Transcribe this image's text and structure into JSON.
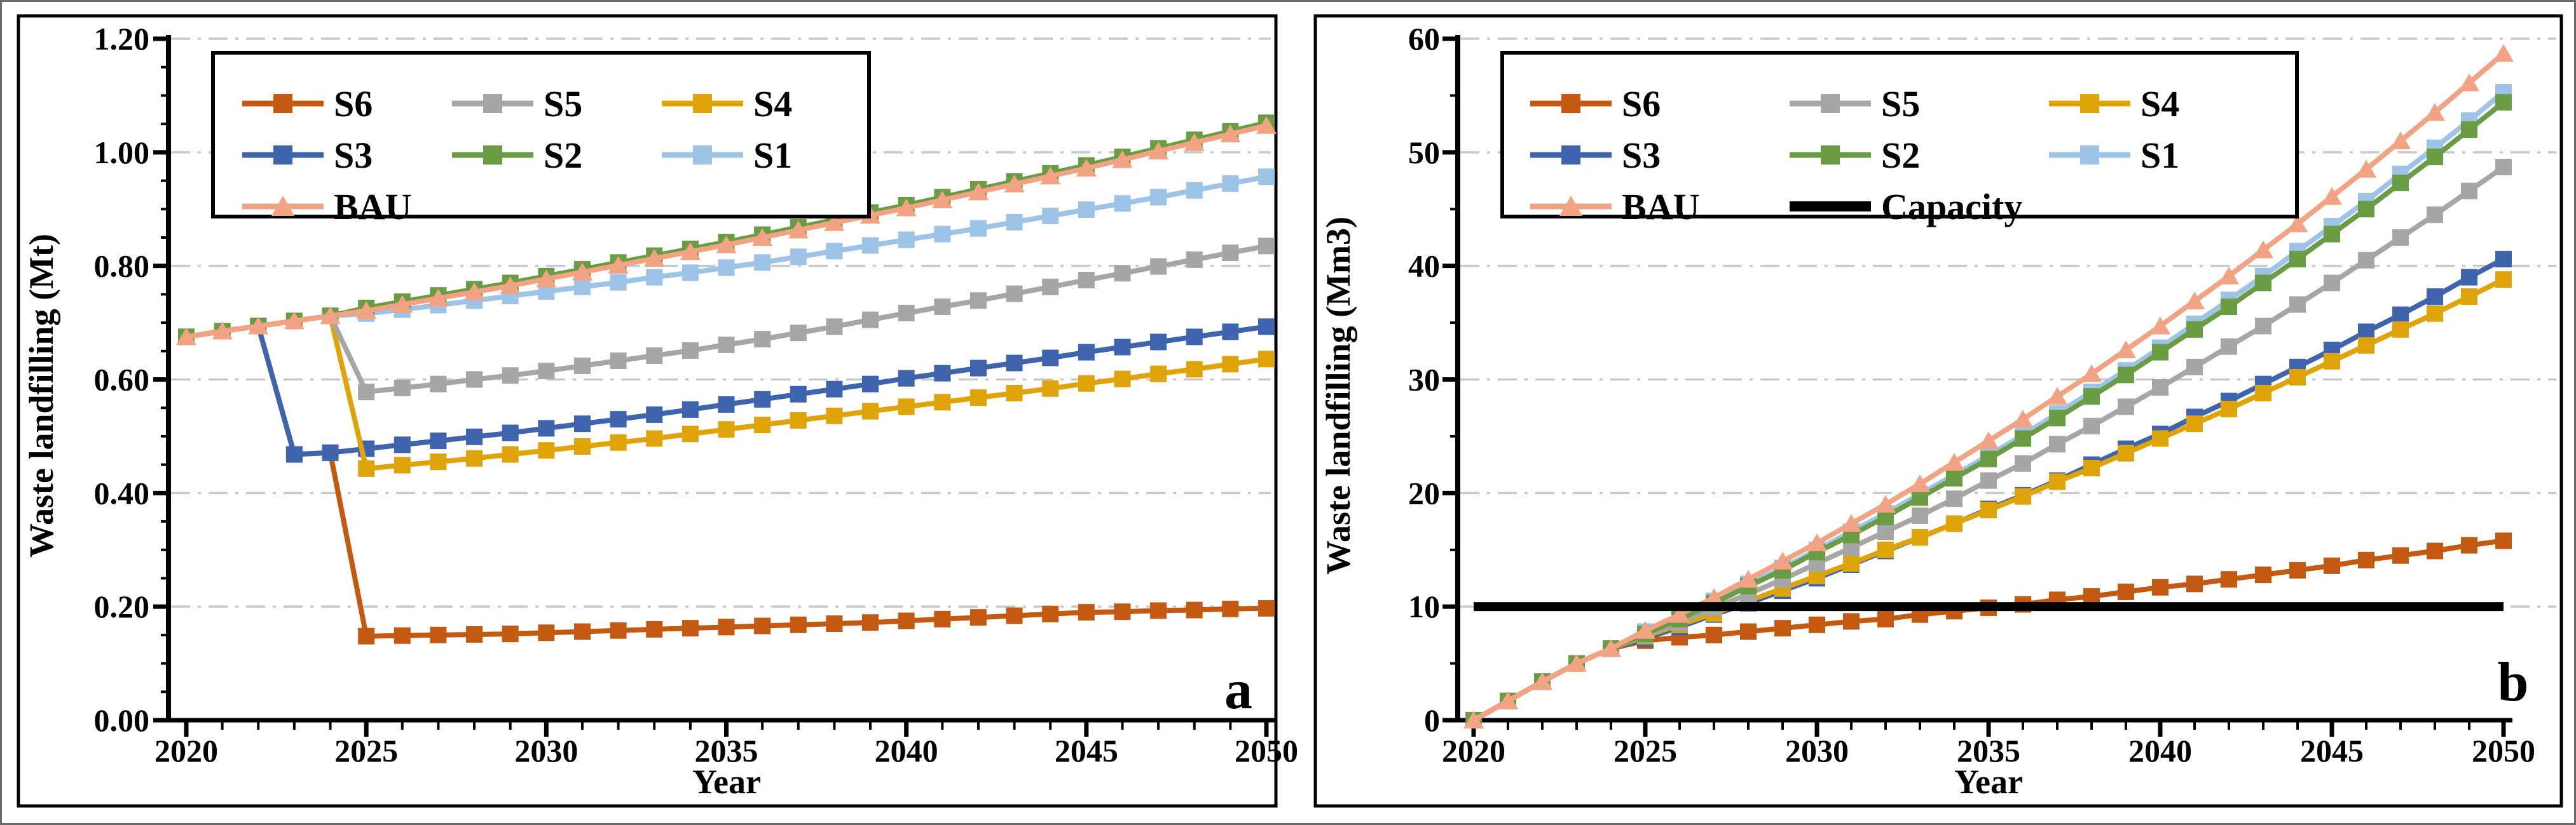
{
  "figure": {
    "background": "#ffffff",
    "outer_border_color": "#6b6b6b",
    "frame_color": "#000000",
    "gridline_color": "#c9c9c9",
    "text_color": "#000000"
  },
  "chart_data": [
    {
      "type": "line",
      "panel_label": "a",
      "xlabel": "Year",
      "ylabel": "Waste landfilling (Mt)",
      "x_start": 2020,
      "x_end": 2050,
      "xlim": [
        2020,
        2050
      ],
      "ylim": [
        0,
        1.2
      ],
      "x_major_step": 5,
      "x_minor_step": 1,
      "y_major_step": 0.2,
      "y_minor_step": 0.05,
      "y_tick_decimals": 2,
      "x_tick_labels": [
        "2020",
        "2025",
        "2030",
        "2035",
        "2040",
        "2045",
        "2050"
      ],
      "y_tick_labels": [
        "0.00",
        "0.20",
        "0.40",
        "0.60",
        "0.80",
        "1.00",
        "1.20"
      ],
      "grid": "horizontal dash-dot",
      "legend_position": "inside top-left",
      "legend_order": [
        "S6",
        "S5",
        "S4",
        "S3",
        "S2",
        "S1",
        "BAU"
      ],
      "draw_order": [
        "S6",
        "S3",
        "S4",
        "S5",
        "S1",
        "S2",
        "BAU"
      ],
      "series": [
        {
          "name": "S6",
          "color": "#C45911",
          "marker": "square",
          "values": [
            0.675,
            0.685,
            0.694,
            0.468,
            0.471,
            0.148,
            0.149,
            0.15,
            0.151,
            0.152,
            0.154,
            0.156,
            0.158,
            0.16,
            0.162,
            0.164,
            0.166,
            0.168,
            0.17,
            0.172,
            0.175,
            0.178,
            0.181,
            0.184,
            0.187,
            0.19,
            0.191,
            0.193,
            0.194,
            0.196,
            0.197
          ]
        },
        {
          "name": "S5",
          "color": "#A6A6A6",
          "marker": "square",
          "values": [
            0.675,
            0.685,
            0.694,
            0.703,
            0.712,
            0.578,
            0.585,
            0.592,
            0.6,
            0.607,
            0.615,
            0.624,
            0.633,
            0.642,
            0.651,
            0.661,
            0.671,
            0.682,
            0.693,
            0.705,
            0.717,
            0.728,
            0.739,
            0.751,
            0.763,
            0.775,
            0.787,
            0.799,
            0.811,
            0.823,
            0.835
          ]
        },
        {
          "name": "S4",
          "color": "#DFA40A",
          "marker": "square",
          "values": [
            0.675,
            0.685,
            0.694,
            0.703,
            0.712,
            0.443,
            0.449,
            0.455,
            0.461,
            0.468,
            0.475,
            0.482,
            0.489,
            0.496,
            0.504,
            0.512,
            0.52,
            0.528,
            0.536,
            0.544,
            0.552,
            0.56,
            0.568,
            0.576,
            0.584,
            0.593,
            0.601,
            0.61,
            0.618,
            0.627,
            0.636
          ]
        },
        {
          "name": "S3",
          "color": "#3E64AE",
          "marker": "square",
          "values": [
            0.675,
            0.685,
            0.694,
            0.468,
            0.471,
            0.478,
            0.485,
            0.492,
            0.499,
            0.506,
            0.514,
            0.522,
            0.53,
            0.538,
            0.547,
            0.556,
            0.565,
            0.574,
            0.583,
            0.592,
            0.602,
            0.611,
            0.62,
            0.629,
            0.638,
            0.648,
            0.657,
            0.666,
            0.675,
            0.684,
            0.693
          ]
        },
        {
          "name": "S2",
          "color": "#6A9C44",
          "marker": "square",
          "values": [
            0.675,
            0.685,
            0.694,
            0.703,
            0.712,
            0.726,
            0.737,
            0.748,
            0.759,
            0.77,
            0.782,
            0.794,
            0.806,
            0.818,
            0.83,
            0.842,
            0.855,
            0.868,
            0.881,
            0.894,
            0.907,
            0.921,
            0.935,
            0.949,
            0.963,
            0.977,
            0.992,
            1.007,
            1.022,
            1.037,
            1.052
          ]
        },
        {
          "name": "S1",
          "color": "#9DC3E6",
          "marker": "square",
          "values": [
            0.675,
            0.685,
            0.694,
            0.703,
            0.712,
            0.716,
            0.723,
            0.731,
            0.739,
            0.747,
            0.755,
            0.763,
            0.771,
            0.78,
            0.788,
            0.797,
            0.806,
            0.816,
            0.826,
            0.836,
            0.846,
            0.856,
            0.866,
            0.877,
            0.888,
            0.899,
            0.91,
            0.921,
            0.933,
            0.945,
            0.957
          ]
        },
        {
          "name": "BAU",
          "color": "#F1A383",
          "marker": "triangle",
          "values": [
            0.675,
            0.685,
            0.694,
            0.703,
            0.712,
            0.721,
            0.732,
            0.743,
            0.754,
            0.765,
            0.777,
            0.789,
            0.801,
            0.813,
            0.825,
            0.837,
            0.85,
            0.863,
            0.876,
            0.889,
            0.902,
            0.916,
            0.93,
            0.944,
            0.958,
            0.972,
            0.987,
            1.002,
            1.017,
            1.032,
            1.047
          ]
        }
      ]
    },
    {
      "type": "line",
      "panel_label": "b",
      "xlabel": "Year",
      "ylabel": "Waste landfilling (Mm3)",
      "x_start": 2020,
      "x_end": 2050,
      "xlim": [
        2020,
        2050
      ],
      "ylim": [
        0,
        60
      ],
      "x_major_step": 5,
      "x_minor_step": 1,
      "y_major_step": 10,
      "y_minor_step": 5,
      "y_tick_decimals": 0,
      "x_tick_labels": [
        "2020",
        "2025",
        "2030",
        "2035",
        "2040",
        "2045",
        "2050"
      ],
      "y_tick_labels": [
        "0",
        "10",
        "20",
        "30",
        "40",
        "50",
        "60"
      ],
      "grid": "horizontal dash-dot",
      "legend_position": "inside top-left",
      "legend_order": [
        "S6",
        "S5",
        "S4",
        "S3",
        "S2",
        "S1",
        "BAU",
        "Capacity"
      ],
      "draw_order": [
        "S6",
        "S3",
        "S4",
        "S5",
        "S1",
        "S2",
        "BAU",
        "Capacity"
      ],
      "series": [
        {
          "name": "S6",
          "color": "#C45911",
          "marker": "square",
          "values": [
            0,
            1.7,
            3.4,
            5.0,
            6.3,
            7.0,
            7.3,
            7.5,
            7.8,
            8.1,
            8.4,
            8.7,
            8.9,
            9.3,
            9.6,
            9.9,
            10.2,
            10.6,
            10.9,
            11.3,
            11.7,
            12.0,
            12.4,
            12.8,
            13.2,
            13.6,
            14.1,
            14.5,
            14.9,
            15.4,
            15.8
          ]
        },
        {
          "name": "S5",
          "color": "#A6A6A6",
          "marker": "square",
          "values": [
            0,
            1.7,
            3.4,
            5.0,
            6.3,
            7.5,
            8.6,
            9.9,
            11.1,
            12.4,
            13.8,
            15.2,
            16.6,
            18.0,
            19.5,
            21.1,
            22.6,
            24.3,
            25.9,
            27.6,
            29.3,
            31.1,
            32.9,
            34.7,
            36.6,
            38.5,
            40.5,
            42.5,
            44.5,
            46.6,
            48.7
          ]
        },
        {
          "name": "S4",
          "color": "#DFA40A",
          "marker": "square",
          "values": [
            0,
            1.7,
            3.4,
            5.0,
            6.3,
            7.4,
            8.4,
            9.4,
            10.5,
            11.6,
            12.7,
            13.8,
            15.0,
            16.1,
            17.3,
            18.5,
            19.7,
            21.0,
            22.2,
            23.5,
            24.8,
            26.1,
            27.4,
            28.8,
            30.2,
            31.6,
            33.0,
            34.4,
            35.8,
            37.3,
            38.8
          ]
        },
        {
          "name": "S3",
          "color": "#3E64AE",
          "marker": "square",
          "values": [
            0,
            1.7,
            3.4,
            5.0,
            6.3,
            7.2,
            8.2,
            9.3,
            10.3,
            11.4,
            12.5,
            13.7,
            14.9,
            16.1,
            17.3,
            18.6,
            19.8,
            21.1,
            22.5,
            23.9,
            25.2,
            26.7,
            28.1,
            29.6,
            31.1,
            32.6,
            34.2,
            35.7,
            37.3,
            39.0,
            40.6
          ]
        },
        {
          "name": "S2",
          "color": "#6A9C44",
          "marker": "square",
          "values": [
            0,
            1.7,
            3.4,
            5.0,
            6.3,
            7.6,
            8.9,
            10.3,
            11.8,
            13.2,
            14.8,
            16.3,
            17.9,
            19.6,
            21.3,
            23.0,
            24.8,
            26.6,
            28.5,
            30.4,
            32.4,
            34.4,
            36.4,
            38.5,
            40.6,
            42.8,
            45.0,
            47.3,
            49.6,
            52.0,
            54.4
          ]
        },
        {
          "name": "S1",
          "color": "#9DC3E6",
          "marker": "square",
          "values": [
            0,
            1.7,
            3.4,
            5.0,
            6.3,
            7.8,
            9.1,
            10.5,
            12.0,
            13.4,
            15.0,
            16.6,
            18.2,
            19.9,
            21.6,
            23.3,
            25.1,
            27.0,
            28.9,
            30.8,
            32.8,
            34.9,
            37.0,
            39.1,
            41.3,
            43.5,
            45.7,
            48.1,
            50.4,
            52.8,
            55.3
          ]
        },
        {
          "name": "BAU",
          "color": "#F1A383",
          "marker": "triangle",
          "values": [
            0,
            1.7,
            3.4,
            5.0,
            6.3,
            7.9,
            9.3,
            10.8,
            12.4,
            14.0,
            15.6,
            17.3,
            19.0,
            20.8,
            22.7,
            24.6,
            26.5,
            28.5,
            30.5,
            32.6,
            34.7,
            36.9,
            39.1,
            41.4,
            43.7,
            46.1,
            48.5,
            51.0,
            53.5,
            56.1,
            58.7
          ]
        },
        {
          "name": "Capacity",
          "color": "#000000",
          "marker": "none",
          "constant": 10,
          "values": [
            10,
            10,
            10,
            10,
            10,
            10,
            10,
            10,
            10,
            10,
            10,
            10,
            10,
            10,
            10,
            10,
            10,
            10,
            10,
            10,
            10,
            10,
            10,
            10,
            10,
            10,
            10,
            10,
            10,
            10,
            10
          ]
        }
      ]
    }
  ]
}
